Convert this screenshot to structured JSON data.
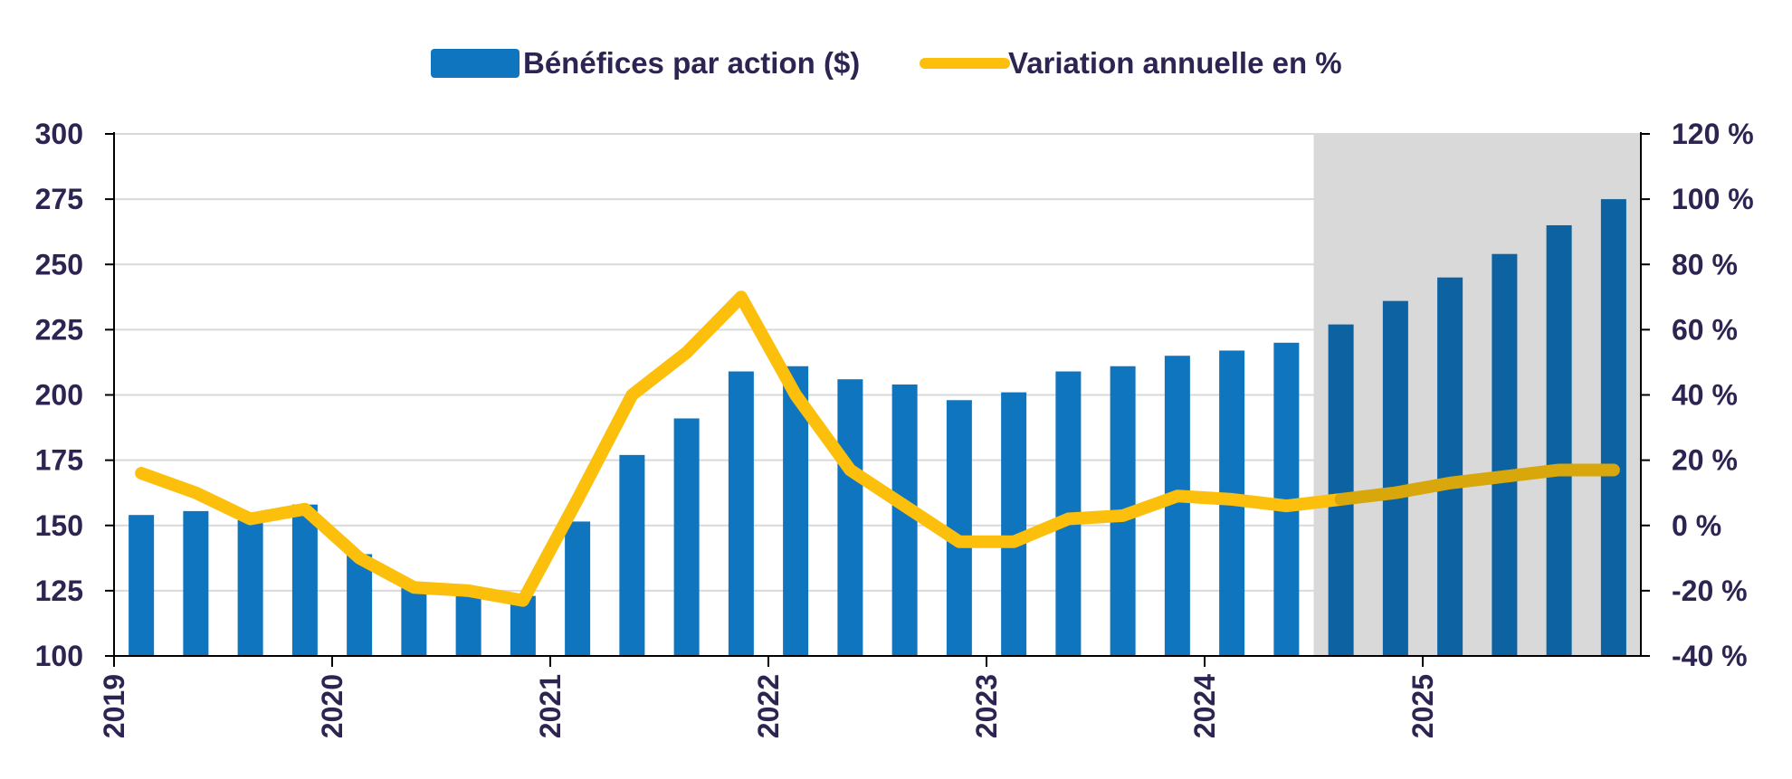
{
  "chart_data": {
    "type": "bar",
    "legend": {
      "bars_label": "Bénéfices par action ($)",
      "line_label": "Variation annuelle en %",
      "placement": "top-center"
    },
    "years": [
      "2019",
      "2020",
      "2021",
      "2022",
      "2023",
      "2024",
      "2025"
    ],
    "quarters_per_year": 4,
    "left_axis": {
      "ylim": [
        100,
        300
      ],
      "ticks": [
        100,
        125,
        150,
        175,
        200,
        225,
        250,
        275,
        300
      ],
      "tick_labels": [
        "100",
        "125",
        "150",
        "175",
        "200",
        "225",
        "250",
        "275",
        "300"
      ]
    },
    "right_axis": {
      "ylim": [
        -40,
        120
      ],
      "ticks": [
        -40,
        -20,
        0,
        20,
        40,
        60,
        80,
        100,
        120
      ],
      "tick_labels": [
        "-40 %",
        "-20 %",
        "0 %",
        "20 %",
        "40 %",
        "60 %",
        "80 %",
        "100 %",
        "120 %"
      ]
    },
    "series": [
      {
        "name": "Bénéfices par action ($)",
        "axis": "left",
        "type": "bar",
        "values": [
          154,
          155.5,
          152,
          158,
          139,
          126,
          124,
          123,
          151.5,
          177,
          191,
          209,
          211,
          206,
          204,
          198,
          201,
          209,
          211,
          215,
          217,
          220,
          227,
          236,
          245,
          254,
          265,
          275
        ]
      },
      {
        "name": "Variation annuelle en %",
        "axis": "right",
        "type": "line",
        "values": [
          16,
          10,
          2,
          5,
          -10,
          -19,
          -20,
          -23,
          8,
          40,
          53,
          70,
          40,
          17,
          6,
          -5,
          -5,
          2,
          3,
          9,
          8,
          6,
          8,
          10,
          13,
          15,
          17,
          17
        ]
      }
    ],
    "forecast_start_index": 22,
    "grid": true,
    "colors": {
      "bar": "#0f75be",
      "bar_forecast": "#0d62a2",
      "line": "#fbbf0c",
      "line_forecast": "#d7a70b",
      "forecast_shade": "#d9d9d9",
      "text": "#2e2452"
    }
  }
}
